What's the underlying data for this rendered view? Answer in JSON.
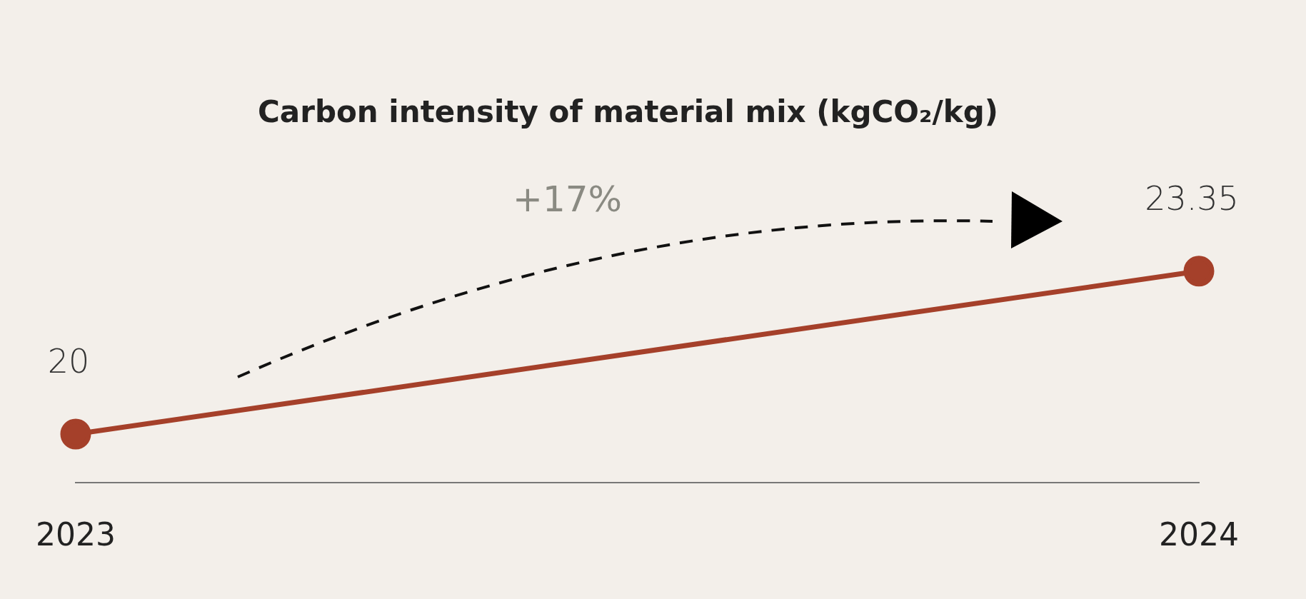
{
  "chart_data": {
    "type": "line",
    "title": "Carbon intensity of material mix (kgCO₂/kg)",
    "categories": [
      "2023",
      "2024"
    ],
    "series": [
      {
        "color": "#a5402a",
        "values": [
          20,
          23.35
        ]
      }
    ],
    "tick_labels": "x",
    "grid": false,
    "legend": false,
    "marker": "circle",
    "line_style": "solid",
    "data_labels": true,
    "annotations": [
      "+17%"
    ]
  }
}
